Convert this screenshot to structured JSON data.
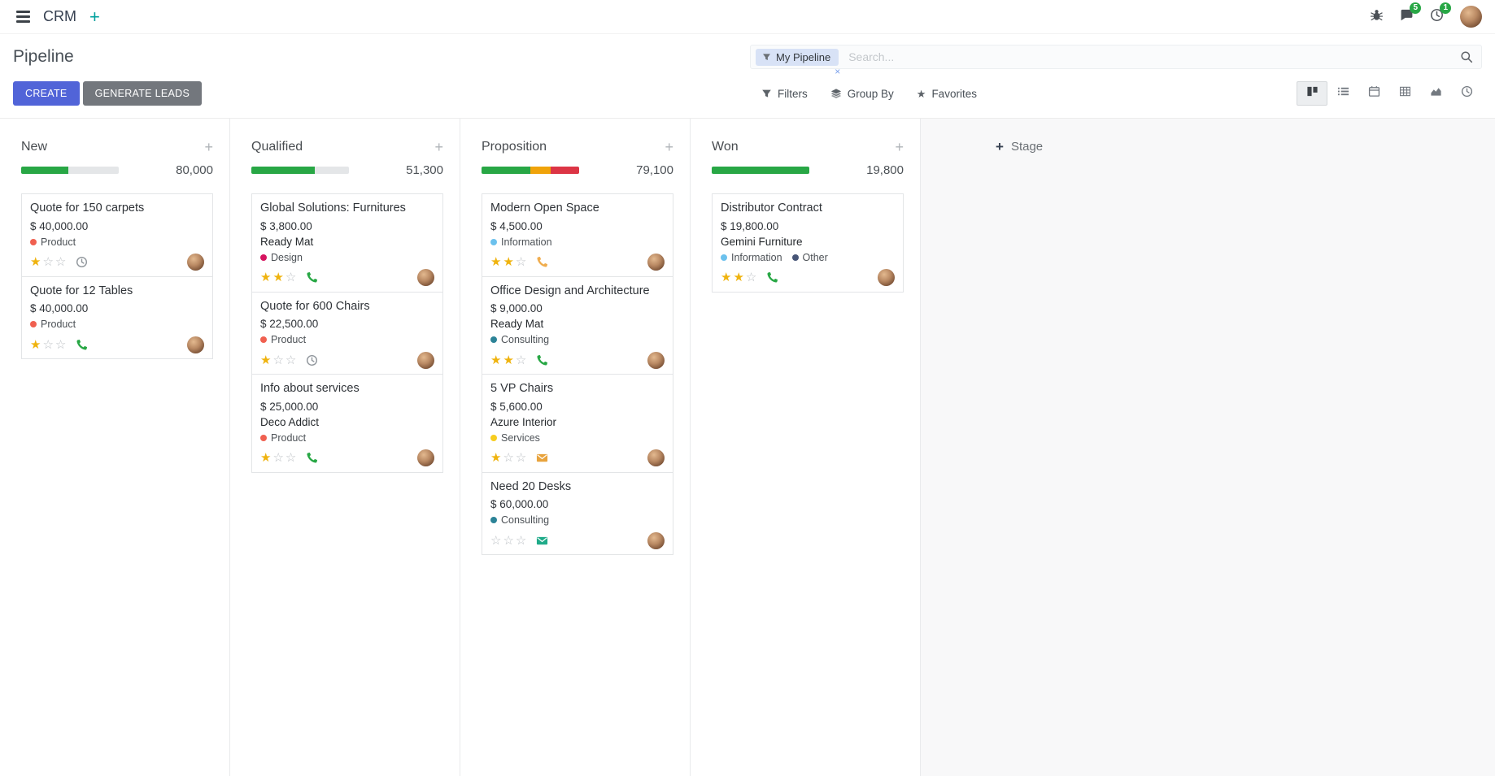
{
  "navbar": {
    "app_title": "CRM",
    "messages_badge": "5",
    "activities_badge": "1"
  },
  "control_panel": {
    "page_title": "Pipeline",
    "buttons": {
      "create": "CREATE",
      "generate_leads": "GENERATE LEADS"
    },
    "search": {
      "facet_label": "My Pipeline",
      "facet_remove": "×",
      "placeholder": "Search..."
    },
    "menus": [
      {
        "label": "Filters",
        "icon": "funnel-icon"
      },
      {
        "label": "Group By",
        "icon": "layers-icon"
      },
      {
        "label": "Favorites",
        "icon": "star-icon"
      }
    ],
    "view_switcher": {
      "active": "kanban",
      "views": [
        "kanban",
        "list",
        "calendar",
        "pivot",
        "graph",
        "activity"
      ]
    }
  },
  "colors": {
    "primary_button": "#5164d8",
    "secondary_button": "#73777d",
    "badge_green": "#28a745",
    "star_filled": "#efb30e",
    "star_empty": "#bcc0c5",
    "facet_bg": "#d8e2f6",
    "navbar_plus": "#00a09d"
  },
  "board": {
    "add_stage_label": "Stage",
    "columns": [
      {
        "name": "New",
        "total": "80,000",
        "progress": [
          {
            "color": "#28a745",
            "pct": 48
          },
          {
            "color": "#e4e6e8",
            "pct": 52
          }
        ],
        "cards": [
          {
            "title": "Quote for 150 carpets",
            "amount": "$ 40,000.00",
            "tags": [
              {
                "label": "Product",
                "color": "#F06050"
              }
            ],
            "stars": 1,
            "activity": {
              "type": "clock",
              "color": "#8f959b"
            }
          },
          {
            "title": "Quote for 12 Tables",
            "amount": "$ 40,000.00",
            "tags": [
              {
                "label": "Product",
                "color": "#F06050"
              }
            ],
            "stars": 1,
            "activity": {
              "type": "phone",
              "color": "#28a745"
            }
          }
        ]
      },
      {
        "name": "Qualified",
        "total": "51,300",
        "progress": [
          {
            "color": "#28a745",
            "pct": 65
          },
          {
            "color": "#e4e6e8",
            "pct": 35
          }
        ],
        "cards": [
          {
            "title": "Global Solutions: Furnitures",
            "amount": "$ 3,800.00",
            "partner": "Ready Mat",
            "tags": [
              {
                "label": "Design",
                "color": "#D6145F"
              }
            ],
            "stars": 2,
            "activity": {
              "type": "phone",
              "color": "#28a745"
            }
          },
          {
            "title": "Quote for 600 Chairs",
            "amount": "$ 22,500.00",
            "tags": [
              {
                "label": "Product",
                "color": "#F06050"
              }
            ],
            "stars": 1,
            "activity": {
              "type": "clock",
              "color": "#8f959b"
            }
          },
          {
            "title": "Info about services",
            "amount": "$ 25,000.00",
            "partner": "Deco Addict",
            "tags": [
              {
                "label": "Product",
                "color": "#F06050"
              }
            ],
            "stars": 1,
            "activity": {
              "type": "phone",
              "color": "#28a745"
            }
          }
        ]
      },
      {
        "name": "Proposition",
        "total": "79,100",
        "progress": [
          {
            "color": "#28a745",
            "pct": 50
          },
          {
            "color": "#f0a30a",
            "pct": 21
          },
          {
            "color": "#dc3545",
            "pct": 29
          }
        ],
        "cards": [
          {
            "title": "Modern Open Space",
            "amount": "$ 4,500.00",
            "tags": [
              {
                "label": "Information",
                "color": "#6CC1ED"
              }
            ],
            "stars": 2,
            "activity": {
              "type": "phone",
              "color": "#f0ad4e"
            }
          },
          {
            "title": "Office Design and Architecture",
            "amount": "$ 9,000.00",
            "partner": "Ready Mat",
            "tags": [
              {
                "label": "Consulting",
                "color": "#2C8397"
              }
            ],
            "stars": 2,
            "activity": {
              "type": "phone",
              "color": "#28a745"
            }
          },
          {
            "title": "5 VP Chairs",
            "amount": "$ 5,600.00",
            "partner": "Azure Interior",
            "tags": [
              {
                "label": "Services",
                "color": "#F7CD1F"
              }
            ],
            "stars": 1,
            "activity": {
              "type": "mail",
              "color": "#e8a33d"
            }
          },
          {
            "title": "Need 20 Desks",
            "amount": "$ 60,000.00",
            "tags": [
              {
                "label": "Consulting",
                "color": "#2C8397"
              }
            ],
            "stars": 0,
            "activity": {
              "type": "mail",
              "color": "#1fab89"
            }
          }
        ]
      },
      {
        "name": "Won",
        "total": "19,800",
        "progress": [
          {
            "color": "#28a745",
            "pct": 100
          }
        ],
        "cards": [
          {
            "title": "Distributor Contract",
            "amount": "$ 19,800.00",
            "partner": "Gemini Furniture",
            "tags": [
              {
                "label": "Information",
                "color": "#6CC1ED"
              },
              {
                "label": "Other",
                "color": "#475577"
              }
            ],
            "stars": 2,
            "activity": {
              "type": "phone",
              "color": "#28a745"
            }
          }
        ]
      }
    ]
  }
}
